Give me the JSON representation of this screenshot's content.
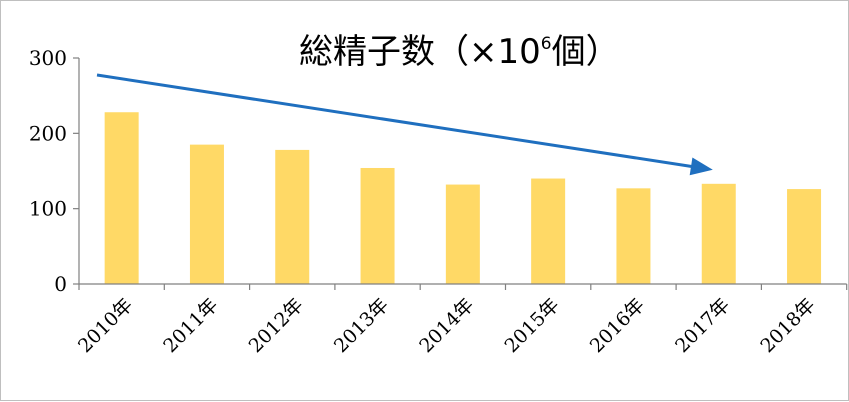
{
  "chart_data": {
    "type": "bar",
    "title_parts": {
      "main": "総精子数（×10",
      "superscript": "6",
      "end": "個）"
    },
    "categories": [
      "2010年",
      "2011年",
      "2012年",
      "2013年",
      "2014年",
      "2015年",
      "2016年",
      "2017年",
      "2018年"
    ],
    "values": [
      228,
      185,
      178,
      154,
      132,
      140,
      127,
      133,
      126
    ],
    "ylim": [
      0,
      300
    ],
    "yticks": [
      "0",
      "100",
      "200",
      "300"
    ],
    "grid": false,
    "legend": "none",
    "annotation": {
      "type": "trend-arrow",
      "direction": "downward",
      "color": "#1f6fbf"
    },
    "colors": {
      "bar": "#ffd966",
      "axis": "#808080",
      "arrow": "#1f6fbf"
    }
  }
}
